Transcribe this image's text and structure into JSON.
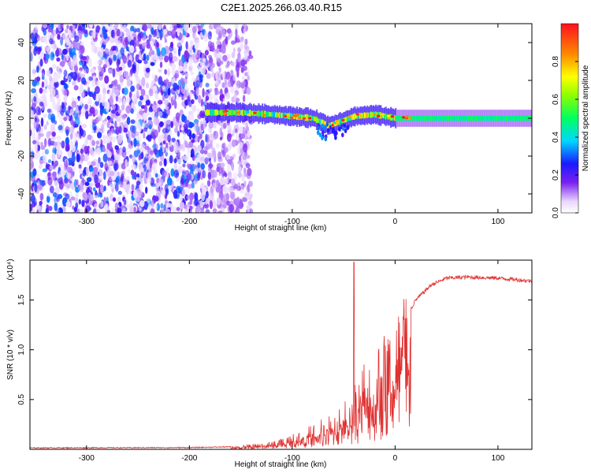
{
  "title": "C2E1.2025.266.03.40.R15",
  "colors": {
    "spectrogram_noise": "#7a2ff0",
    "spectrogram_signal": "#20d0b0",
    "snr_line": "#e03030"
  },
  "chart_data": [
    {
      "type": "heatmap",
      "name": "spectrogram",
      "xlabel": "Height of straight line (km)",
      "ylabel": "Frequency (Hz)",
      "xlim": [
        -355,
        133
      ],
      "ylim": [
        -50,
        50
      ],
      "xticks": [
        -300,
        -200,
        -100,
        0,
        100
      ],
      "yticks": [
        -40,
        -20,
        0,
        20,
        40
      ],
      "colorbar": {
        "label": "Normalized spectral amplitude",
        "range": [
          0,
          1
        ],
        "ticks": [
          0.0,
          0.2,
          0.4,
          0.6,
          0.8
        ],
        "tick_labels": [
          "0.0",
          "0.2",
          "0.4",
          "0.6",
          "0.8"
        ],
        "colormap": "rainbow"
      },
      "features": {
        "noise_region_x": [
          -355,
          -180
        ],
        "noise_sparse_x": [
          -180,
          -140
        ],
        "signal_x": [
          -185,
          133
        ],
        "signal_center_freq": [
          [
            -185,
            3
          ],
          [
            -150,
            3
          ],
          [
            -120,
            2
          ],
          [
            -100,
            1
          ],
          [
            -80,
            0
          ],
          [
            -65,
            -4
          ],
          [
            -55,
            -2
          ],
          [
            -40,
            1
          ],
          [
            -20,
            2
          ],
          [
            0,
            0
          ],
          [
            50,
            0
          ],
          [
            133,
            0
          ]
        ],
        "signal_half_width_hz": 2.5
      }
    },
    {
      "type": "line",
      "name": "snr",
      "xlabel": "Height of straight line (km)",
      "ylabel": "SNR (10 * v/v)",
      "yscale_label": "(x10⁴)",
      "xlim": [
        -355,
        133
      ],
      "ylim": [
        0,
        1.9
      ],
      "xticks": [
        -300,
        -200,
        -100,
        0,
        100
      ],
      "yticks": [
        0.5,
        1.0,
        1.5
      ],
      "ytick_labels": [
        "0.5",
        "1.0",
        "1.5"
      ],
      "envelope": {
        "x": [
          -355,
          -200,
          -160,
          -130,
          -110,
          -90,
          -70,
          -55,
          -45,
          -38,
          -30,
          -20,
          -10,
          0,
          10,
          20,
          35,
          50,
          70,
          100,
          133
        ],
        "y": [
          0.015,
          0.018,
          0.025,
          0.05,
          0.09,
          0.16,
          0.25,
          0.35,
          0.45,
          0.6,
          0.75,
          0.85,
          0.95,
          1.05,
          1.3,
          1.5,
          1.65,
          1.72,
          1.73,
          1.72,
          1.69
        ]
      },
      "spikes": [
        {
          "x": -40,
          "y": 1.88
        }
      ]
    }
  ]
}
